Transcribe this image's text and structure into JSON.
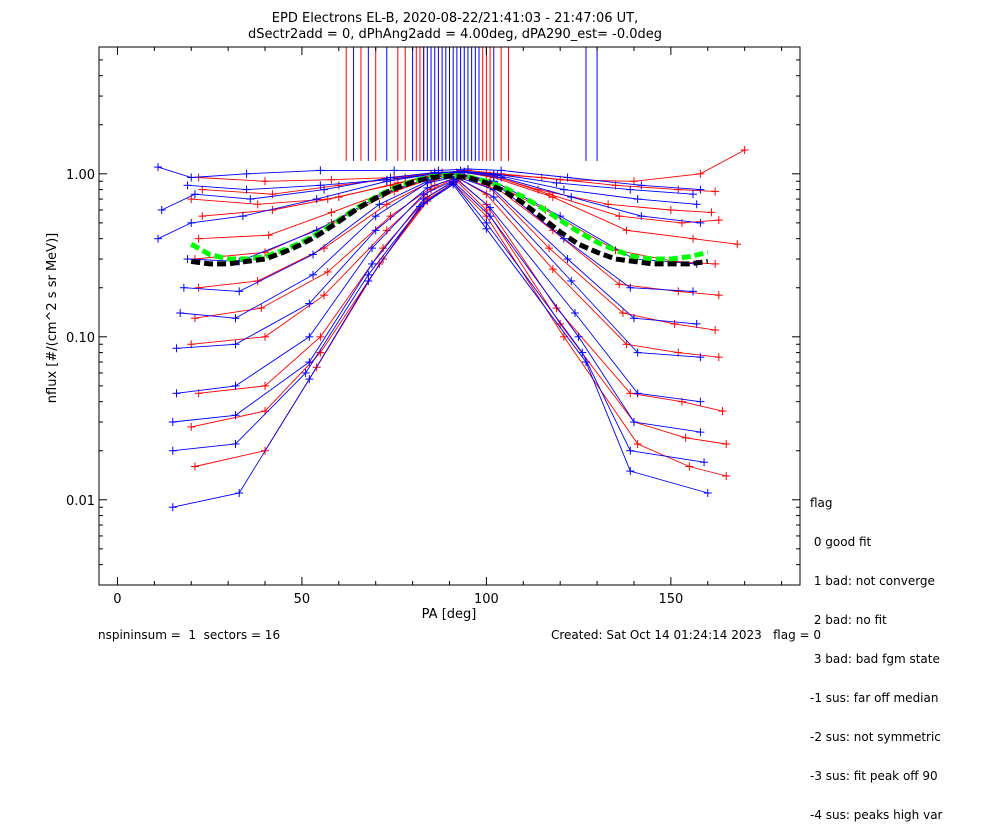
{
  "header": {
    "title_line1": "EPD Electrons EL-B, 2020-08-22/21:41:03 - 21:47:06 UT,",
    "title_line2": "dSectr2add = 0, dPhAng2add = 4.00deg, dPA290_est=  -0.0deg"
  },
  "legend": {
    "heading": "flag",
    "items": [
      " 0 good fit",
      " 1 bad: not converge",
      " 2 bad: no fit",
      " 3 bad: bad fgm state",
      "-1 sus: far off median",
      "-2 sus: not symmetric",
      "-3 sus: fit peak off 90",
      "-4 sus: peaks high var"
    ]
  },
  "footer": {
    "left": "nspininsum =  1  sectors = 16",
    "right": "Created: Sat Oct 14 01:24:14 2023   flag = 0"
  },
  "colors": {
    "red_series": "#ff0000",
    "blue_series": "#0000ff",
    "median_fit": "#000000",
    "model_fit": "#00ff00"
  },
  "chart_data": {
    "type": "line",
    "title": "EPD Electrons EL-B, 2020-08-22/21:41:03 - 21:47:06 UT,",
    "subtitle": "dSectr2add = 0, dPhAng2add = 4.00deg, dPA290_est=  -0.0deg",
    "xlabel": "PA [deg]",
    "ylabel": "nflux [#/(cm^2 s sr MeV)]",
    "xlim": [
      -5,
      185
    ],
    "ylim": [
      0.003,
      6
    ],
    "yscale": "log",
    "xticks": [
      0,
      50,
      100,
      150
    ],
    "xtick_labels": [
      "0",
      "50",
      "100",
      "150"
    ],
    "yticks": [
      0.01,
      0.1,
      1.0
    ],
    "ytick_labels": [
      "0.01",
      "0.10",
      "1.00"
    ],
    "grid": false,
    "legend_position": "right, outside plot",
    "fit_curves": [
      {
        "color": "green",
        "style": "dashed",
        "x": [
          20,
          25,
          30,
          35,
          40,
          45,
          50,
          55,
          60,
          65,
          70,
          75,
          80,
          85,
          90,
          95,
          100,
          105,
          110,
          115,
          120,
          125,
          130,
          135,
          140,
          145,
          150,
          155,
          160
        ],
        "y": [
          0.37,
          0.32,
          0.3,
          0.3,
          0.31,
          0.34,
          0.38,
          0.44,
          0.52,
          0.62,
          0.72,
          0.82,
          0.9,
          0.96,
          0.98,
          0.96,
          0.9,
          0.82,
          0.72,
          0.62,
          0.52,
          0.44,
          0.38,
          0.34,
          0.31,
          0.3,
          0.3,
          0.31,
          0.33
        ]
      },
      {
        "color": "black",
        "style": "dashed",
        "x": [
          20,
          25,
          30,
          35,
          40,
          45,
          50,
          55,
          60,
          65,
          70,
          75,
          80,
          85,
          90,
          95,
          100,
          105,
          110,
          115,
          120,
          125,
          130,
          135,
          140,
          145,
          150,
          155,
          160
        ],
        "y": [
          0.29,
          0.28,
          0.28,
          0.29,
          0.3,
          0.33,
          0.37,
          0.43,
          0.51,
          0.61,
          0.71,
          0.81,
          0.89,
          0.95,
          0.97,
          0.95,
          0.88,
          0.78,
          0.66,
          0.54,
          0.44,
          0.37,
          0.33,
          0.3,
          0.29,
          0.28,
          0.28,
          0.28,
          0.29
        ]
      }
    ],
    "red_series": [
      {
        "x": [
          22,
          40,
          58,
          75,
          85,
          92,
          100,
          115,
          135,
          152,
          162
        ],
        "y": [
          0.95,
          0.9,
          0.92,
          0.95,
          1.0,
          1.02,
          1.0,
          0.95,
          0.85,
          0.8,
          0.78
        ]
      },
      {
        "x": [
          20,
          38,
          57,
          74,
          86,
          93,
          101,
          114,
          133,
          150,
          161
        ],
        "y": [
          0.7,
          0.65,
          0.7,
          0.85,
          0.98,
          1.05,
          0.98,
          0.8,
          0.65,
          0.6,
          0.58
        ]
      },
      {
        "x": [
          23,
          42,
          60,
          76,
          87,
          94,
          102,
          117,
          136,
          153,
          163
        ],
        "y": [
          0.55,
          0.6,
          0.72,
          0.88,
          1.0,
          1.03,
          0.97,
          0.75,
          0.55,
          0.5,
          0.52
        ]
      },
      {
        "x": [
          21,
          40,
          58,
          75,
          86,
          92,
          100,
          116,
          135,
          151,
          162
        ],
        "y": [
          0.3,
          0.33,
          0.5,
          0.78,
          0.95,
          1.0,
          0.92,
          0.6,
          0.34,
          0.29,
          0.28
        ]
      },
      {
        "x": [
          22,
          38,
          56,
          73,
          85,
          92,
          101,
          118,
          136,
          152,
          163
        ],
        "y": [
          0.2,
          0.22,
          0.35,
          0.65,
          0.9,
          1.0,
          0.88,
          0.45,
          0.21,
          0.19,
          0.18
        ]
      },
      {
        "x": [
          21,
          39,
          57,
          74,
          86,
          93,
          101,
          117,
          137,
          151,
          162
        ],
        "y": [
          0.13,
          0.15,
          0.25,
          0.55,
          0.85,
          0.97,
          0.82,
          0.35,
          0.14,
          0.12,
          0.11
        ]
      },
      {
        "x": [
          20,
          40,
          56,
          73,
          85,
          92,
          100,
          118,
          138,
          152,
          163
        ],
        "y": [
          0.09,
          0.1,
          0.18,
          0.45,
          0.8,
          0.95,
          0.75,
          0.26,
          0.09,
          0.08,
          0.075
        ]
      },
      {
        "x": [
          22,
          40,
          55,
          72,
          84,
          92,
          100,
          119,
          139,
          153,
          164
        ],
        "y": [
          0.045,
          0.05,
          0.1,
          0.35,
          0.72,
          0.92,
          0.65,
          0.15,
          0.045,
          0.04,
          0.035
        ]
      },
      {
        "x": [
          20,
          40,
          55,
          72,
          84,
          92,
          100,
          120,
          140,
          154,
          165
        ],
        "y": [
          0.028,
          0.035,
          0.08,
          0.3,
          0.7,
          0.9,
          0.6,
          0.12,
          0.03,
          0.024,
          0.022
        ]
      },
      {
        "x": [
          21,
          40,
          54,
          71,
          84,
          91,
          100,
          121,
          141,
          155,
          165
        ],
        "y": [
          0.016,
          0.02,
          0.065,
          0.28,
          0.68,
          0.88,
          0.55,
          0.1,
          0.022,
          0.016,
          0.014
        ]
      },
      {
        "x": [
          23,
          42,
          60,
          78,
          88,
          95,
          104,
          120,
          140,
          158,
          170
        ],
        "y": [
          0.8,
          0.75,
          0.85,
          0.95,
          1.02,
          1.05,
          1.0,
          0.92,
          0.9,
          1.0,
          1.4
        ]
      },
      {
        "x": [
          22,
          41,
          58,
          76,
          87,
          94,
          102,
          118,
          138,
          156,
          168
        ],
        "y": [
          0.4,
          0.42,
          0.58,
          0.82,
          0.98,
          1.02,
          0.95,
          0.72,
          0.45,
          0.4,
          0.37
        ]
      }
    ],
    "blue_series": [
      {
        "x": [
          11,
          20,
          35,
          55,
          75,
          87,
          95,
          104,
          122,
          142,
          158
        ],
        "y": [
          1.1,
          0.95,
          1.0,
          1.05,
          1.05,
          1.05,
          1.07,
          1.05,
          0.95,
          0.85,
          0.8
        ]
      },
      {
        "x": [
          12,
          21,
          36,
          56,
          74,
          86,
          94,
          103,
          121,
          141,
          157
        ],
        "y": [
          0.6,
          0.75,
          0.7,
          0.8,
          0.95,
          1.02,
          1.03,
          0.98,
          0.8,
          0.7,
          0.65
        ]
      },
      {
        "x": [
          11,
          20,
          34,
          54,
          73,
          86,
          94,
          104,
          123,
          142,
          158
        ],
        "y": [
          0.4,
          0.5,
          0.55,
          0.7,
          0.9,
          1.0,
          1.02,
          0.95,
          0.72,
          0.55,
          0.5
        ]
      },
      {
        "x": [
          19,
          33,
          54,
          72,
          85,
          93,
          102,
          120,
          140,
          157
        ],
        "y": [
          0.3,
          0.29,
          0.45,
          0.75,
          0.95,
          1.0,
          0.9,
          0.55,
          0.3,
          0.28
        ]
      },
      {
        "x": [
          18,
          33,
          53,
          71,
          85,
          93,
          103,
          121,
          139,
          156
        ],
        "y": [
          0.2,
          0.19,
          0.32,
          0.65,
          0.92,
          0.98,
          0.85,
          0.4,
          0.2,
          0.19
        ]
      },
      {
        "x": [
          17,
          32,
          53,
          70,
          84,
          92,
          102,
          122,
          140,
          157
        ],
        "y": [
          0.14,
          0.13,
          0.24,
          0.55,
          0.88,
          0.96,
          0.8,
          0.3,
          0.13,
          0.12
        ]
      },
      {
        "x": [
          16,
          32,
          52,
          70,
          84,
          92,
          102,
          123,
          141,
          158
        ],
        "y": [
          0.085,
          0.09,
          0.16,
          0.45,
          0.82,
          0.95,
          0.72,
          0.22,
          0.08,
          0.075
        ]
      },
      {
        "x": [
          16,
          32,
          52,
          69,
          83,
          92,
          101,
          124,
          141,
          158
        ],
        "y": [
          0.045,
          0.05,
          0.1,
          0.35,
          0.75,
          0.93,
          0.62,
          0.14,
          0.045,
          0.04
        ]
      },
      {
        "x": [
          15,
          32,
          52,
          69,
          83,
          91,
          101,
          125,
          140,
          158
        ],
        "y": [
          0.03,
          0.033,
          0.07,
          0.28,
          0.7,
          0.9,
          0.55,
          0.1,
          0.03,
          0.026
        ]
      },
      {
        "x": [
          15,
          32,
          51,
          68,
          83,
          91,
          100,
          126,
          139,
          159
        ],
        "y": [
          0.02,
          0.022,
          0.06,
          0.24,
          0.66,
          0.88,
          0.5,
          0.08,
          0.02,
          0.017
        ]
      },
      {
        "x": [
          15,
          33,
          52,
          68,
          82,
          91,
          100,
          127,
          139,
          160
        ],
        "y": [
          0.009,
          0.011,
          0.055,
          0.22,
          0.63,
          0.86,
          0.46,
          0.07,
          0.015,
          0.011
        ]
      },
      {
        "x": [
          19,
          35,
          55,
          73,
          86,
          93,
          102,
          119,
          139,
          156
        ],
        "y": [
          0.85,
          0.8,
          0.85,
          0.92,
          1.0,
          1.04,
          1.0,
          0.88,
          0.8,
          0.75
        ]
      }
    ],
    "vertical_markers": {
      "description": "near-vertical traces from fit points up to top of plot",
      "x_blue": [
        64,
        68,
        73,
        80,
        83,
        84,
        85,
        86,
        87,
        88,
        89,
        90,
        91,
        92,
        93,
        94,
        95,
        96,
        97,
        98,
        102,
        127,
        130
      ],
      "x_red": [
        62,
        66,
        70,
        76,
        78,
        81,
        82,
        83,
        99,
        100,
        101,
        104,
        106
      ]
    }
  }
}
